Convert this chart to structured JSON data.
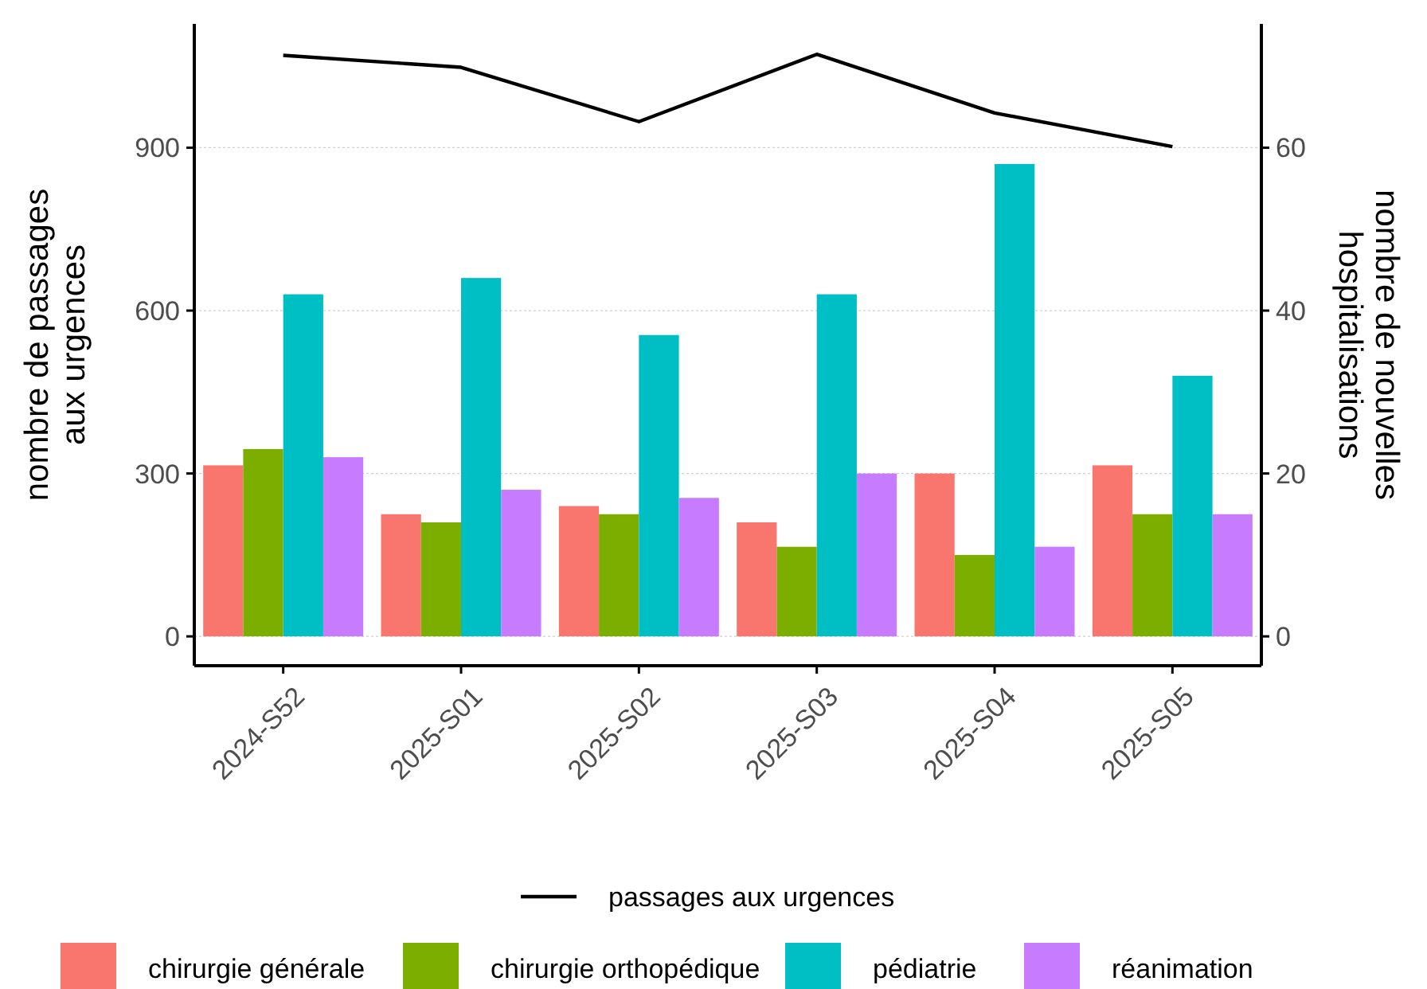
{
  "chart_data": {
    "type": "bar",
    "ylabel": "nombre de passages aux urgences",
    "y2label": "nombre de nouvelles hospitalisations",
    "categories": [
      "2024-S52",
      "2025-S01",
      "2025-S02",
      "2025-S03",
      "2025-S04",
      "2025-S05"
    ],
    "series": [
      {
        "name": "passages aux urgences",
        "type": "line",
        "color": "#000000",
        "values": [
          1070,
          1048,
          948,
          1072,
          964,
          902
        ]
      },
      {
        "name": "chirurgie générale",
        "color": "#f8766d",
        "axis": "y2",
        "values": [
          21,
          15,
          16,
          14,
          20,
          21
        ]
      },
      {
        "name": "chirurgie orthopédique",
        "color": "#7cae00",
        "axis": "y2",
        "values": [
          23,
          14,
          15,
          11,
          10,
          15
        ]
      },
      {
        "name": "pédiatrie",
        "color": "#00bfc4",
        "axis": "y2",
        "values": [
          42,
          44,
          37,
          42,
          58,
          32
        ]
      },
      {
        "name": "réanimation",
        "color": "#c77cff",
        "axis": "y2",
        "values": [
          22,
          18,
          17,
          20,
          11,
          15
        ]
      }
    ],
    "ylim": [
      -54,
      1128
    ],
    "yticks": [
      0,
      300,
      600,
      900
    ],
    "y2lim": [
      -3.6,
      75.2
    ],
    "y2ticks": [
      0,
      20,
      40,
      60
    ],
    "grid": "y",
    "legend": "bottom"
  }
}
